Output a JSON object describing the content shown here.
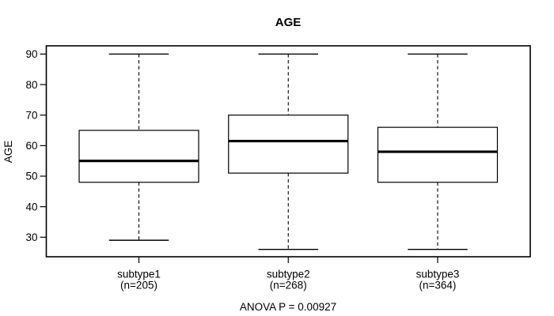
{
  "window": {
    "background": "#ffffff"
  },
  "chart_data": {
    "type": "boxplot",
    "title": "AGE",
    "ylabel": "AGE",
    "xlabel": "",
    "annotation": "ANOVA P = 0.00927",
    "yticks": [
      30,
      40,
      50,
      60,
      70,
      80,
      90
    ],
    "ylim": [
      23.6,
      92.7
    ],
    "grid": false,
    "legend": "none",
    "colors": {
      "line": "#000000",
      "box_fill": "#ffffff",
      "background": "#ffffff"
    },
    "groups": [
      {
        "label": "subtype1",
        "sublabel": "(n=205)",
        "n": 205,
        "stats": {
          "whisker_low": 29,
          "q1": 48,
          "median": 55,
          "q3": 65,
          "whisker_high": 90
        }
      },
      {
        "label": "subtype2",
        "sublabel": "(n=268)",
        "n": 268,
        "stats": {
          "whisker_low": 26,
          "q1": 51,
          "median": 61.5,
          "q3": 70,
          "whisker_high": 90
        }
      },
      {
        "label": "subtype3",
        "sublabel": "(n=364)",
        "n": 364,
        "stats": {
          "whisker_low": 26,
          "q1": 48,
          "median": 58,
          "q3": 66,
          "whisker_high": 90
        }
      }
    ]
  }
}
